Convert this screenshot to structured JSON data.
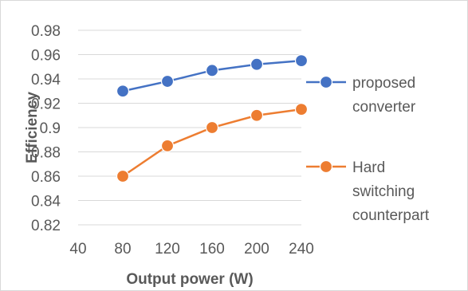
{
  "chart_data": {
    "type": "line",
    "title": "",
    "xlabel": "Output power (W)",
    "ylabel": "Efficiency",
    "x_ticks": [
      "40",
      "80",
      "120",
      "160",
      "200",
      "240"
    ],
    "y_ticks": [
      "0.82",
      "0.84",
      "0.86",
      "0.88",
      "0.9",
      "0.92",
      "0.94",
      "0.96",
      "0.98"
    ],
    "xlim": [
      40,
      240
    ],
    "ylim": [
      0.82,
      0.98
    ],
    "grid": "horizontal",
    "legend_position": "right",
    "x": [
      80,
      120,
      160,
      200,
      240
    ],
    "series": [
      {
        "name": "proposed converter",
        "legend_lines": [
          "proposed",
          "converter"
        ],
        "color": "#4472c4",
        "values": [
          0.93,
          0.938,
          0.947,
          0.952,
          0.955
        ]
      },
      {
        "name": "Hard switching counterpart",
        "legend_lines": [
          "Hard",
          "switching",
          "counterpart"
        ],
        "color": "#ed7d31",
        "values": [
          0.86,
          0.885,
          0.9,
          0.91,
          0.915
        ]
      }
    ]
  }
}
